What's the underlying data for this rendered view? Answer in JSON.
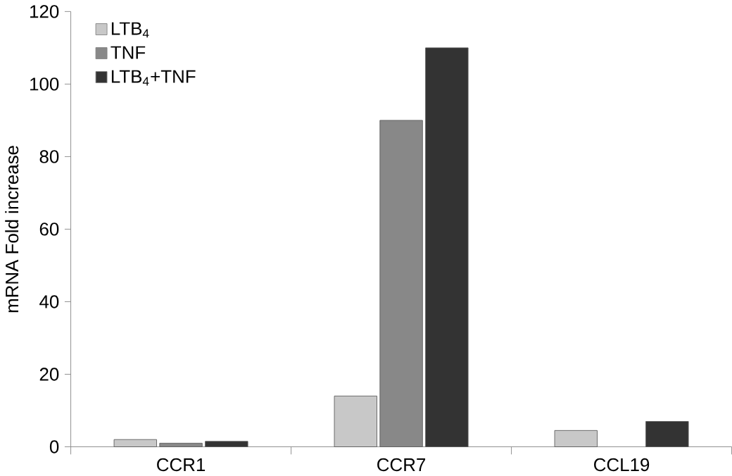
{
  "chart_data": {
    "type": "bar",
    "ylabel": "mRNA Fold increase",
    "categories": [
      "CCR1",
      "CCR7",
      "CCL19"
    ],
    "series": [
      {
        "name": "LTB$_{4}$",
        "color": "#c8c8c8",
        "values": [
          2,
          14,
          4.5
        ]
      },
      {
        "name": "TNF",
        "color": "#888888",
        "values": [
          1,
          90,
          null
        ]
      },
      {
        "name": "LTB$_{4}$+TNF",
        "color": "#333333",
        "values": [
          1.5,
          110,
          7
        ]
      }
    ],
    "ylim": [
      0,
      120
    ],
    "yticks": [
      0,
      20,
      40,
      60,
      80,
      100,
      120
    ],
    "legend": "top left",
    "grid": false
  }
}
